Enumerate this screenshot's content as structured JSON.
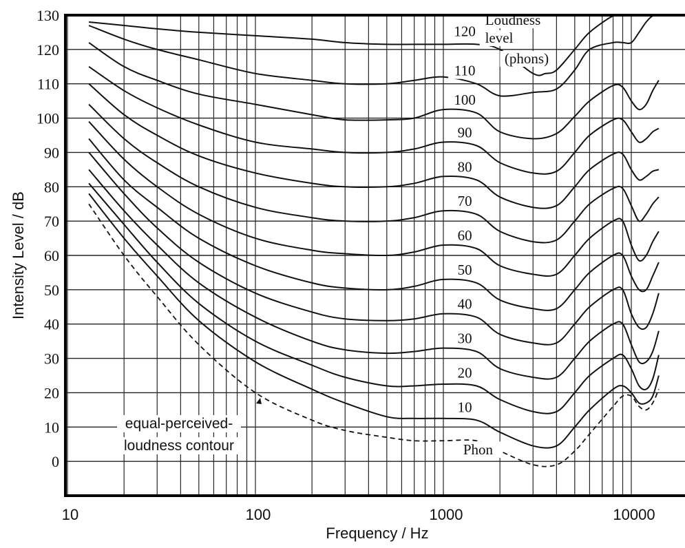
{
  "chart_data": {
    "type": "line",
    "title": "",
    "xlabel": "Frequency / Hz",
    "ylabel": "Intensity Level / dB",
    "xscale": "log",
    "xlim": [
      10,
      20000
    ],
    "ylim": [
      -10,
      130
    ],
    "x_ticks": [
      10,
      100,
      1000,
      10000
    ],
    "x_tick_labels": [
      "10",
      "100",
      "1000",
      "10000"
    ],
    "y_ticks": [
      0,
      10,
      20,
      30,
      40,
      50,
      60,
      70,
      80,
      90,
      100,
      110,
      120,
      130
    ],
    "y_tick_labels": [
      "0",
      "10",
      "20",
      "30",
      "40",
      "50",
      "60",
      "70",
      "80",
      "90",
      "100",
      "110",
      "120",
      "130"
    ],
    "grid": true,
    "legend_title": [
      "Loudness",
      "level",
      "(phons)"
    ],
    "annotations": {
      "dashed_contour_label": [
        "equal-perceived-",
        "loudness contour"
      ],
      "threshold_label": "Phon"
    },
    "series": [
      {
        "name": "120",
        "x": [
          13,
          20,
          30,
          50,
          100,
          200,
          300,
          500,
          700,
          1000,
          1500,
          2000,
          3000,
          3500,
          4000,
          5000,
          6000,
          8000,
          9000,
          10000,
          12000,
          13000
        ],
        "y": [
          128,
          127,
          126,
          125,
          124,
          123,
          122,
          121.5,
          121.5,
          121.5,
          121.5,
          120,
          113,
          113,
          114,
          120,
          125,
          130,
          132,
          132,
          133,
          133
        ]
      },
      {
        "name": "110",
        "x": [
          13,
          20,
          30,
          50,
          100,
          200,
          300,
          500,
          700,
          1000,
          1500,
          2000,
          3000,
          4000,
          5000,
          6000,
          8000,
          9000,
          10000,
          11000,
          12000,
          13000,
          14000
        ],
        "y": [
          127,
          123,
          120,
          117,
          113,
          111,
          110,
          110,
          111,
          112,
          110,
          106.5,
          107.5,
          108.5,
          114,
          120,
          122,
          122,
          122,
          125,
          128,
          131,
          133
        ]
      },
      {
        "name": "100",
        "x": [
          13,
          20,
          30,
          50,
          100,
          200,
          300,
          500,
          700,
          1000,
          1500,
          2000,
          3000,
          4000,
          5000,
          6000,
          8000,
          9000,
          10000,
          11000,
          12000,
          13000,
          14000
        ],
        "y": [
          122,
          115,
          111,
          107,
          104,
          101,
          99.5,
          99.5,
          100,
          102.5,
          101.5,
          96,
          94,
          95.5,
          100.5,
          105,
          109.5,
          109,
          105,
          102.5,
          104,
          108,
          111
        ]
      },
      {
        "name": "90",
        "x": [
          13,
          20,
          30,
          50,
          100,
          200,
          300,
          500,
          700,
          1000,
          1500,
          2000,
          3000,
          4000,
          5000,
          6000,
          8000,
          9000,
          10000,
          11000,
          12000,
          13000,
          14000
        ],
        "y": [
          115,
          108,
          103,
          98,
          93,
          91,
          90,
          90,
          91,
          93,
          92,
          87,
          84,
          84.5,
          90,
          95,
          99.5,
          99.5,
          96,
          93,
          94,
          96,
          97
        ]
      },
      {
        "name": "80",
        "x": [
          13,
          20,
          30,
          50,
          100,
          200,
          300,
          500,
          700,
          1000,
          1500,
          2000,
          3000,
          4000,
          5000,
          6000,
          8000,
          9000,
          10000,
          11000,
          12000,
          13000,
          14000
        ],
        "y": [
          110,
          101,
          95,
          89,
          84,
          81,
          80,
          80,
          81,
          83,
          82,
          77,
          74,
          74.5,
          80,
          85,
          89.5,
          89.5,
          85,
          82,
          83,
          84.5,
          85
        ]
      },
      {
        "name": "70",
        "x": [
          13,
          20,
          30,
          50,
          100,
          200,
          300,
          500,
          700,
          1000,
          1500,
          2000,
          3000,
          4000,
          5000,
          6000,
          8000,
          9000,
          10000,
          11000,
          12000,
          13000,
          14000
        ],
        "y": [
          104,
          94,
          87,
          80,
          74,
          71,
          70,
          70,
          71,
          73,
          72,
          67,
          64,
          64.5,
          70,
          75,
          79.5,
          79.5,
          74.5,
          70,
          72,
          75,
          77
        ]
      },
      {
        "name": "60",
        "x": [
          13,
          20,
          30,
          50,
          100,
          200,
          300,
          500,
          700,
          1000,
          1500,
          2000,
          3000,
          4000,
          5000,
          6000,
          8000,
          9000,
          10000,
          11000,
          12000,
          13000,
          14000
        ],
        "y": [
          99,
          88,
          80,
          72,
          65,
          61.5,
          60.5,
          60,
          61,
          63,
          62,
          57,
          54.5,
          54.5,
          60,
          65,
          70,
          70,
          63,
          58.5,
          60,
          64,
          67
        ]
      },
      {
        "name": "50",
        "x": [
          13,
          20,
          30,
          50,
          100,
          200,
          300,
          500,
          700,
          1000,
          1500,
          2000,
          3000,
          4000,
          5000,
          6000,
          8000,
          9000,
          10000,
          11000,
          12000,
          13000,
          14000
        ],
        "y": [
          94,
          82,
          74,
          65,
          57,
          52,
          50.5,
          50,
          51,
          53,
          52,
          47,
          44.5,
          44.5,
          50,
          55,
          60,
          60,
          54,
          50,
          50,
          54,
          58
        ]
      },
      {
        "name": "40",
        "x": [
          13,
          20,
          30,
          50,
          100,
          200,
          300,
          500,
          700,
          1000,
          1500,
          2000,
          3000,
          4000,
          5000,
          6000,
          8000,
          9000,
          10000,
          11000,
          12000,
          13000,
          14000
        ],
        "y": [
          90,
          78,
          68,
          58,
          49,
          43.5,
          41.5,
          41,
          41.5,
          43,
          42,
          37,
          34.5,
          34.5,
          40,
          45,
          50,
          50,
          43,
          39,
          39,
          43,
          49
        ]
      },
      {
        "name": "30",
        "x": [
          13,
          20,
          30,
          50,
          100,
          200,
          300,
          500,
          700,
          1000,
          1500,
          2000,
          3000,
          4000,
          5000,
          6000,
          8000,
          9000,
          10000,
          11000,
          12000,
          13000,
          14000
        ],
        "y": [
          85,
          73,
          63,
          52,
          42,
          35,
          32.5,
          31.5,
          32,
          33,
          32,
          27,
          24.5,
          24.5,
          30,
          35,
          40,
          40,
          34,
          29,
          29,
          32,
          38
        ]
      },
      {
        "name": "20",
        "x": [
          13,
          20,
          30,
          50,
          100,
          200,
          300,
          500,
          700,
          1000,
          1500,
          2000,
          3000,
          4000,
          5000,
          6000,
          8000,
          9000,
          10000,
          11000,
          12000,
          13000,
          14000
        ],
        "y": [
          81,
          69,
          58,
          46,
          35,
          28,
          24.5,
          22,
          22,
          22.5,
          22,
          18,
          14.5,
          14.5,
          20,
          25,
          30,
          31,
          27,
          22,
          21,
          24,
          31
        ]
      },
      {
        "name": "10",
        "x": [
          13,
          20,
          30,
          50,
          100,
          200,
          300,
          500,
          700,
          1000,
          1500,
          2000,
          3000,
          4000,
          5000,
          6000,
          8000,
          9000,
          10000,
          11000,
          12000,
          13000,
          14000
        ],
        "y": [
          78,
          65,
          54,
          41,
          29,
          21,
          17,
          13,
          12.5,
          12.5,
          12,
          8.5,
          4.5,
          4.5,
          10,
          15,
          21,
          22,
          20,
          17,
          17,
          19,
          25
        ]
      },
      {
        "name": "Phon",
        "style": "dashed",
        "x": [
          13,
          20,
          30,
          50,
          100,
          200,
          300,
          500,
          700,
          1000,
          1500,
          2000,
          3000,
          4000,
          5000,
          6000,
          8000,
          9000,
          10000,
          11000,
          12000,
          13000,
          14000
        ],
        "y": [
          75,
          60,
          48,
          34,
          20,
          12,
          9,
          7,
          6,
          6,
          6,
          3,
          -1,
          -1,
          3,
          8,
          16,
          19,
          19,
          16,
          15,
          17,
          21
        ]
      }
    ]
  }
}
